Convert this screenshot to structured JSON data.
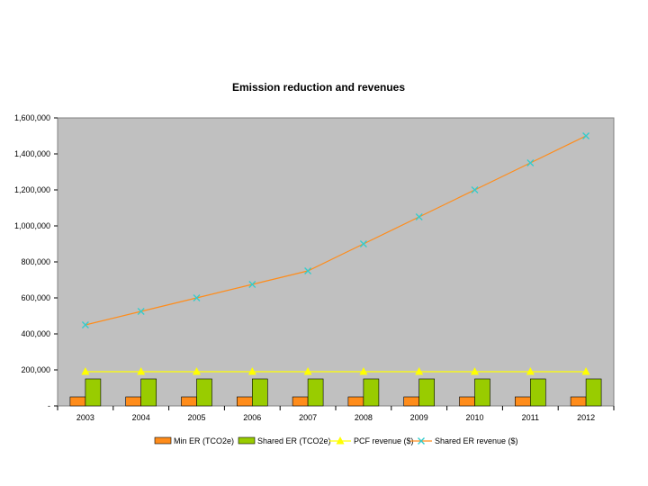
{
  "chart_data": {
    "type": "bar",
    "title": "Emission reduction and revenues",
    "categories": [
      "2003",
      "2004",
      "2005",
      "2006",
      "2007",
      "2008",
      "2009",
      "2010",
      "2011",
      "2012"
    ],
    "ylim": [
      0,
      1600000
    ],
    "yticks": [
      0,
      200000,
      400000,
      600000,
      800000,
      1000000,
      1200000,
      1400000,
      1600000
    ],
    "ytick_labels": [
      "-",
      "200,000",
      "400,000",
      "600,000",
      "800,000",
      "1,000,000",
      "1,200,000",
      "1,400,000",
      "1,600,000"
    ],
    "plot_background": "#c0c0c0",
    "legend_position": "bottom",
    "series": [
      {
        "name": "Min ER (TCO2e)",
        "kind": "bar",
        "color": "#ff8c1a",
        "values": [
          50000,
          50000,
          50000,
          50000,
          50000,
          50000,
          50000,
          50000,
          50000,
          50000
        ]
      },
      {
        "name": "Shared ER (TCO2e)",
        "kind": "bar",
        "color": "#99cc00",
        "values": [
          150000,
          150000,
          150000,
          150000,
          150000,
          150000,
          150000,
          150000,
          150000,
          150000
        ]
      },
      {
        "name": "PCF revenue ($)",
        "kind": "line",
        "color": "#ffff00",
        "marker": "triangle",
        "values": [
          190000,
          190000,
          190000,
          190000,
          190000,
          190000,
          190000,
          190000,
          190000,
          190000
        ]
      },
      {
        "name": "Shared ER revenue ($)",
        "kind": "line",
        "color": "#ff8c1a",
        "marker_color": "#33cccc",
        "marker": "x",
        "values": [
          450000,
          525000,
          600000,
          675000,
          750000,
          900000,
          1050000,
          1200000,
          1350000,
          1500000
        ]
      }
    ]
  }
}
